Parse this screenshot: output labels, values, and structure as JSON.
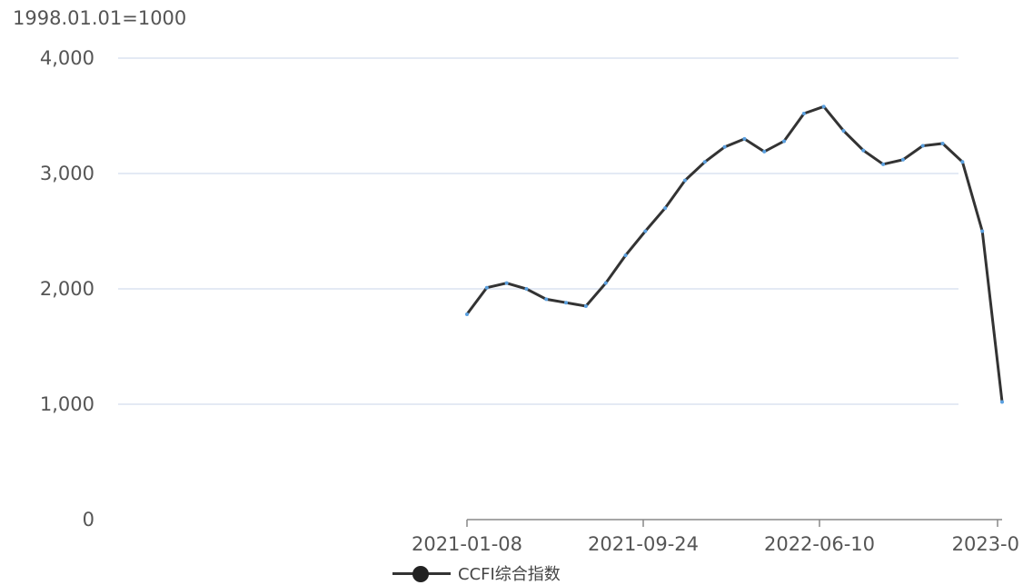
{
  "base_note": "1998.01.01=1000",
  "legend": {
    "series_name": "CCFI综合指数"
  },
  "colors": {
    "line": "#333333",
    "grid": "#dce3f0",
    "axis_text": "#555555",
    "marker": "#5aa0e0"
  },
  "chart_data": {
    "type": "line",
    "title": "",
    "xlabel": "",
    "ylabel": "",
    "ylim": [
      0,
      4000
    ],
    "yticks": [
      "0",
      "1,000",
      "2,000",
      "3,000",
      "4,000"
    ],
    "xticks": [
      "2021-01-08",
      "2021-09-24",
      "2022-06-10",
      "2023-0"
    ],
    "grid": true,
    "legend_position": "bottom-center",
    "series": [
      {
        "name": "CCFI综合指数",
        "x": [
          "2021-01-08",
          "2021-01-29",
          "2021-02-26",
          "2021-03-26",
          "2021-04-23",
          "2021-05-21",
          "2021-06-18",
          "2021-07-16",
          "2021-08-13",
          "2021-09-10",
          "2021-10-08",
          "2021-11-05",
          "2021-12-03",
          "2021-12-31",
          "2022-01-28",
          "2022-02-25",
          "2022-03-25",
          "2022-04-22",
          "2022-05-20",
          "2022-06-17",
          "2022-07-15",
          "2022-08-12",
          "2022-09-09",
          "2022-10-07",
          "2022-11-04",
          "2022-12-02",
          "2022-12-30",
          "2023-01-20"
        ],
        "values": [
          1780,
          2010,
          2050,
          2000,
          1910,
          1880,
          1850,
          2050,
          2290,
          2500,
          2700,
          2940,
          3100,
          3230,
          3300,
          3190,
          3280,
          3520,
          3580,
          3370,
          3200,
          3080,
          3120,
          3240,
          3260,
          3100,
          2500,
          1020
        ]
      }
    ]
  }
}
